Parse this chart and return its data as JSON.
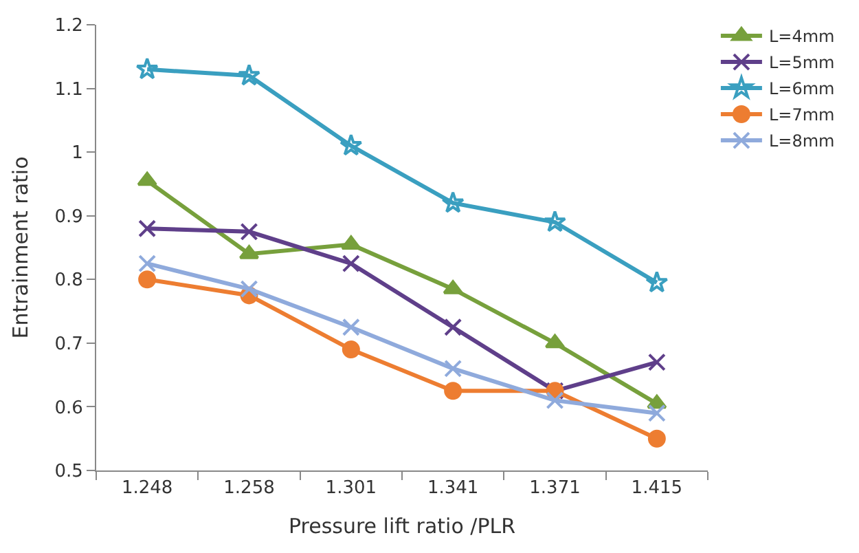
{
  "chart_data": {
    "type": "line",
    "xlabel": "Pressure lift ratio /PLR",
    "ylabel": "Entrainment ratio",
    "categories": [
      "1.248",
      "1.258",
      "1.301",
      "1.341",
      "1.371",
      "1.415"
    ],
    "series": [
      {
        "name": "L=4mm",
        "color": "#77a03c",
        "marker": "triangle",
        "values": [
          0.955,
          0.84,
          0.855,
          0.785,
          0.7,
          0.605
        ]
      },
      {
        "name": "L=5mm",
        "color": "#5f3f8a",
        "marker": "cross",
        "values": [
          0.88,
          0.875,
          0.825,
          0.725,
          0.625,
          0.67
        ]
      },
      {
        "name": "L=6mm",
        "color": "#3a9fc0",
        "marker": "star",
        "values": [
          1.13,
          1.12,
          1.01,
          0.92,
          0.89,
          0.795
        ]
      },
      {
        "name": "L=7mm",
        "color": "#ed7d31",
        "marker": "circle",
        "values": [
          0.8,
          0.775,
          0.69,
          0.625,
          0.625,
          0.55
        ]
      },
      {
        "name": "L=8mm",
        "color": "#8faadc",
        "marker": "cross",
        "values": [
          0.825,
          0.785,
          0.725,
          0.66,
          0.61,
          0.59
        ]
      }
    ],
    "ylim": [
      0.5,
      1.2
    ],
    "yticks": [
      0.5,
      0.6,
      0.7,
      0.8,
      0.9,
      1,
      1.1,
      1.2
    ],
    "legend": "top right",
    "line_style": "solid"
  }
}
